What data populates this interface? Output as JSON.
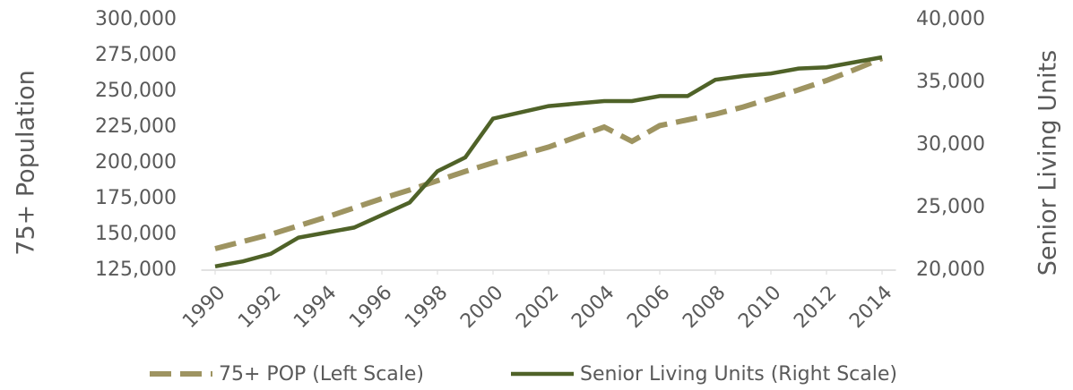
{
  "chart_data": {
    "type": "line",
    "x": [
      1990,
      1991,
      1992,
      1993,
      1994,
      1995,
      1996,
      1997,
      1998,
      1999,
      2000,
      2001,
      2002,
      2003,
      2004,
      2005,
      2006,
      2007,
      2008,
      2009,
      2010,
      2011,
      2012,
      2013,
      2014
    ],
    "xlim": [
      1989.5,
      2014.5
    ],
    "xticks": [
      1990,
      1992,
      1994,
      1996,
      1998,
      2000,
      2002,
      2004,
      2006,
      2008,
      2010,
      2012,
      2014
    ],
    "ylabel": "75+ Population",
    "y2label": "Senior Living Units",
    "ylim": [
      125000,
      300000
    ],
    "yticks": [
      {
        "value": 125000,
        "label": "125,000"
      },
      {
        "value": 150000,
        "label": "150,000"
      },
      {
        "value": 175000,
        "label": "175,000"
      },
      {
        "value": 200000,
        "label": "200,000"
      },
      {
        "value": 225000,
        "label": "225,000"
      },
      {
        "value": 250000,
        "label": "250,000"
      },
      {
        "value": 275000,
        "label": "275,000"
      },
      {
        "value": 300000,
        "label": "300,000"
      }
    ],
    "y2lim": [
      20000,
      40000
    ],
    "y2ticks": [
      {
        "value": 20000,
        "label": "20,000"
      },
      {
        "value": 25000,
        "label": "25,000"
      },
      {
        "value": 30000,
        "label": "30,000"
      },
      {
        "value": 35000,
        "label": "35,000"
      },
      {
        "value": 40000,
        "label": "40,000"
      }
    ],
    "grid": false,
    "legend": "bottom",
    "series": [
      {
        "name": "75+ POP (Left Scale)",
        "color": "#9e9461",
        "dashed": true,
        "values": [
          140000,
          145000,
          150000,
          156000,
          162000,
          168500,
          175000,
          181000,
          187500,
          194000,
          200000,
          205500,
          211000,
          218000,
          225000,
          215000,
          226000,
          230000,
          234000,
          239000,
          245000,
          251000,
          257500,
          265000,
          273000
        ]
      },
      {
        "name": "Senior Living Units (Right Scale)",
        "color": "#4f6228",
        "dashed": false,
        "axis": "y2",
        "values": [
          20300,
          20700,
          21300,
          22600,
          23000,
          23400,
          24400,
          25400,
          27900,
          29000,
          32100,
          32600,
          33100,
          33300,
          33500,
          33500,
          33900,
          33900,
          35200,
          35500,
          35700,
          36100,
          36200,
          36600,
          37000
        ]
      }
    ]
  }
}
